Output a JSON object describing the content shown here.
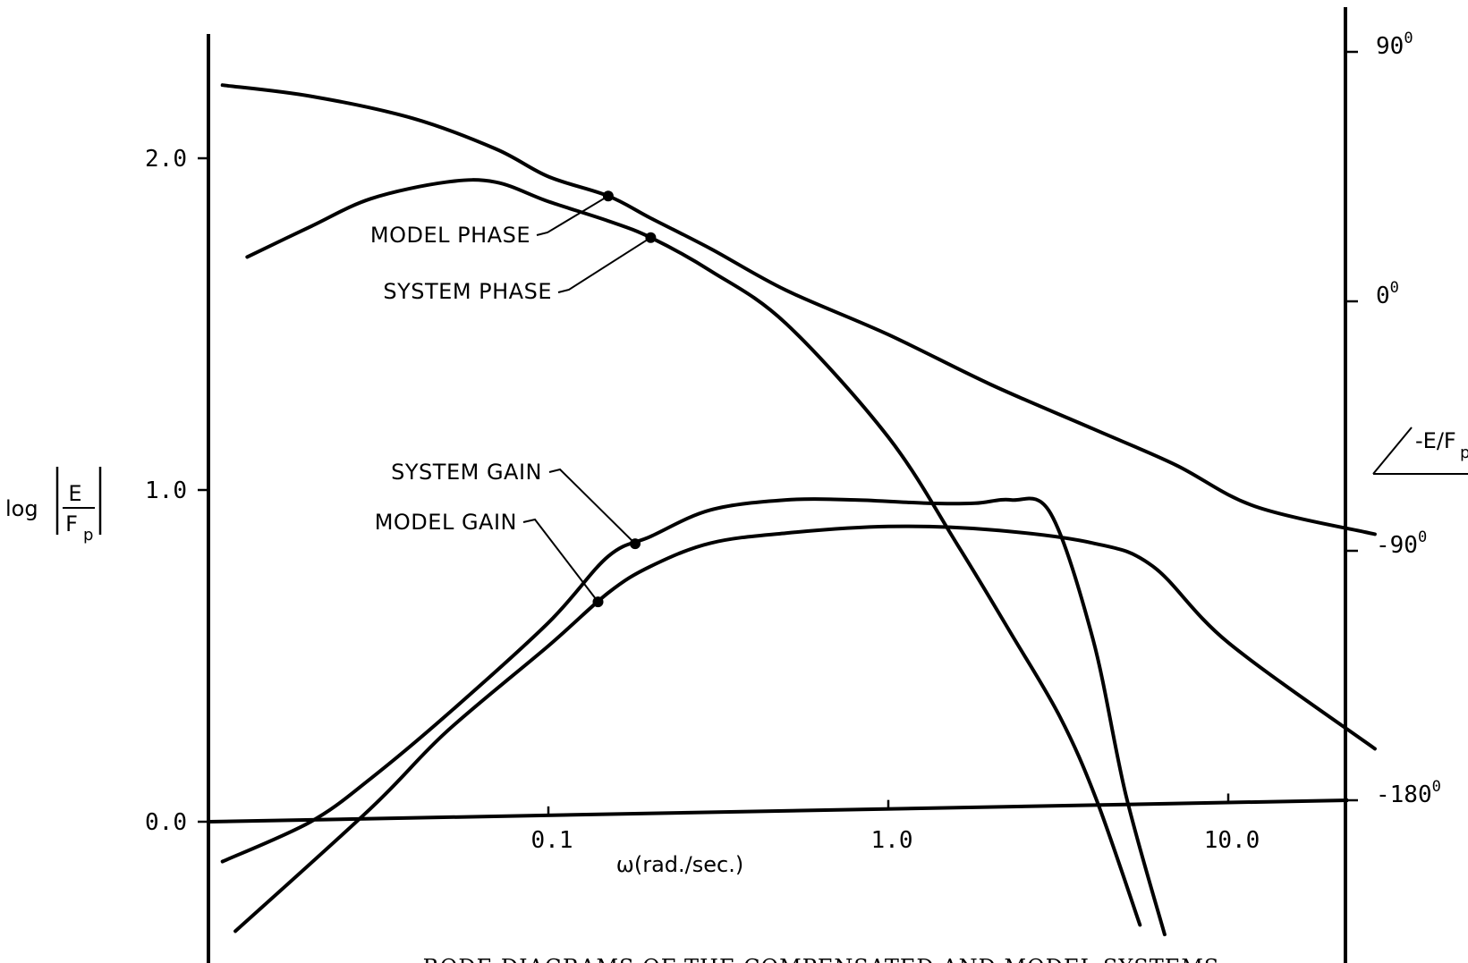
{
  "chart_data": {
    "type": "line",
    "title": "",
    "caption": "BODE DIAGRAMS OF THE COMPENSATED AND MODEL SYSTEMS",
    "x_axis": {
      "label": "ω(rad./sec.)",
      "scale": "log",
      "range": [
        0.01,
        30
      ],
      "ticks": [
        {
          "value": 0.1,
          "label": "0.1"
        },
        {
          "value": 1.0,
          "label": "1.0"
        },
        {
          "value": 10.0,
          "label": "10.0"
        }
      ]
    },
    "left_axis": {
      "label_prefix": "log",
      "label_numerator": "E",
      "label_denominator": "F",
      "label_subscript": "p",
      "range": [
        -0.33,
        2.4
      ],
      "ticks": [
        {
          "value": 0.0,
          "label": "0.0"
        },
        {
          "value": 1.0,
          "label": "1.0"
        },
        {
          "value": 2.0,
          "label": "2.0"
        }
      ]
    },
    "right_axis": {
      "label_text": "-E/F",
      "label_subscript": "p",
      "unit": "degrees",
      "ticks": [
        {
          "value": 90,
          "label": "90",
          "sup": "0"
        },
        {
          "value": 0,
          "label": "0",
          "sup": "0"
        },
        {
          "value": -90,
          "label": "-90",
          "sup": "0"
        },
        {
          "value": -180,
          "label": "-180",
          "sup": "0"
        }
      ]
    },
    "series": [
      {
        "name": "MODEL PHASE",
        "axis": "right",
        "points": [
          [
            0.011,
            78
          ],
          [
            0.02,
            74
          ],
          [
            0.04,
            66
          ],
          [
            0.07,
            55
          ],
          [
            0.1,
            45
          ],
          [
            0.15,
            38
          ],
          [
            0.2,
            30
          ],
          [
            0.3,
            19
          ],
          [
            0.5,
            4
          ],
          [
            1.0,
            -12
          ],
          [
            2.0,
            -30
          ],
          [
            4.0,
            -46
          ],
          [
            7.0,
            -59
          ],
          [
            12.0,
            -74
          ],
          [
            27.0,
            -84
          ]
        ]
      },
      {
        "name": "SYSTEM PHASE",
        "axis": "right",
        "points": [
          [
            0.013,
            16
          ],
          [
            0.02,
            27
          ],
          [
            0.03,
            37
          ],
          [
            0.05,
            43
          ],
          [
            0.07,
            43
          ],
          [
            0.1,
            36
          ],
          [
            0.15,
            29
          ],
          [
            0.2,
            23
          ],
          [
            0.3,
            11
          ],
          [
            0.5,
            -8
          ],
          [
            1.0,
            -49
          ],
          [
            1.6,
            -88
          ],
          [
            2.3,
            -120
          ],
          [
            3.2,
            -150
          ],
          [
            4.1,
            -180
          ],
          [
            5.5,
            -225
          ]
        ]
      },
      {
        "name": "SYSTEM GAIN",
        "axis": "left",
        "points": [
          [
            0.011,
            -0.12
          ],
          [
            0.02,
            0.0
          ],
          [
            0.03,
            0.13
          ],
          [
            0.05,
            0.32
          ],
          [
            0.1,
            0.6
          ],
          [
            0.15,
            0.8
          ],
          [
            0.2,
            0.86
          ],
          [
            0.3,
            0.94
          ],
          [
            0.5,
            0.97
          ],
          [
            0.8,
            0.97
          ],
          [
            1.3,
            0.96
          ],
          [
            1.8,
            0.96
          ],
          [
            2.3,
            0.97
          ],
          [
            3.0,
            0.93
          ],
          [
            4.0,
            0.55
          ],
          [
            5.0,
            0.08
          ],
          [
            6.5,
            -0.34
          ]
        ]
      },
      {
        "name": "MODEL GAIN",
        "axis": "left",
        "points": [
          [
            0.012,
            -0.33
          ],
          [
            0.03,
            0.04
          ],
          [
            0.05,
            0.27
          ],
          [
            0.1,
            0.53
          ],
          [
            0.15,
            0.69
          ],
          [
            0.2,
            0.77
          ],
          [
            0.3,
            0.84
          ],
          [
            0.5,
            0.87
          ],
          [
            1.0,
            0.89
          ],
          [
            2.0,
            0.88
          ],
          [
            4.0,
            0.84
          ],
          [
            6.0,
            0.77
          ],
          [
            10.0,
            0.54
          ],
          [
            27.0,
            0.22
          ]
        ]
      }
    ],
    "annotations": [
      {
        "text": "MODEL PHASE",
        "series": "MODEL PHASE",
        "at_x": 0.15
      },
      {
        "text": "SYSTEM PHASE",
        "series": "SYSTEM PHASE",
        "at_x": 0.2
      },
      {
        "text": "SYSTEM GAIN",
        "series": "SYSTEM GAIN",
        "at_x": 0.18
      },
      {
        "text": "MODEL GAIN",
        "series": "MODEL GAIN",
        "at_x": 0.14
      }
    ],
    "grid": false,
    "legend": "none"
  }
}
